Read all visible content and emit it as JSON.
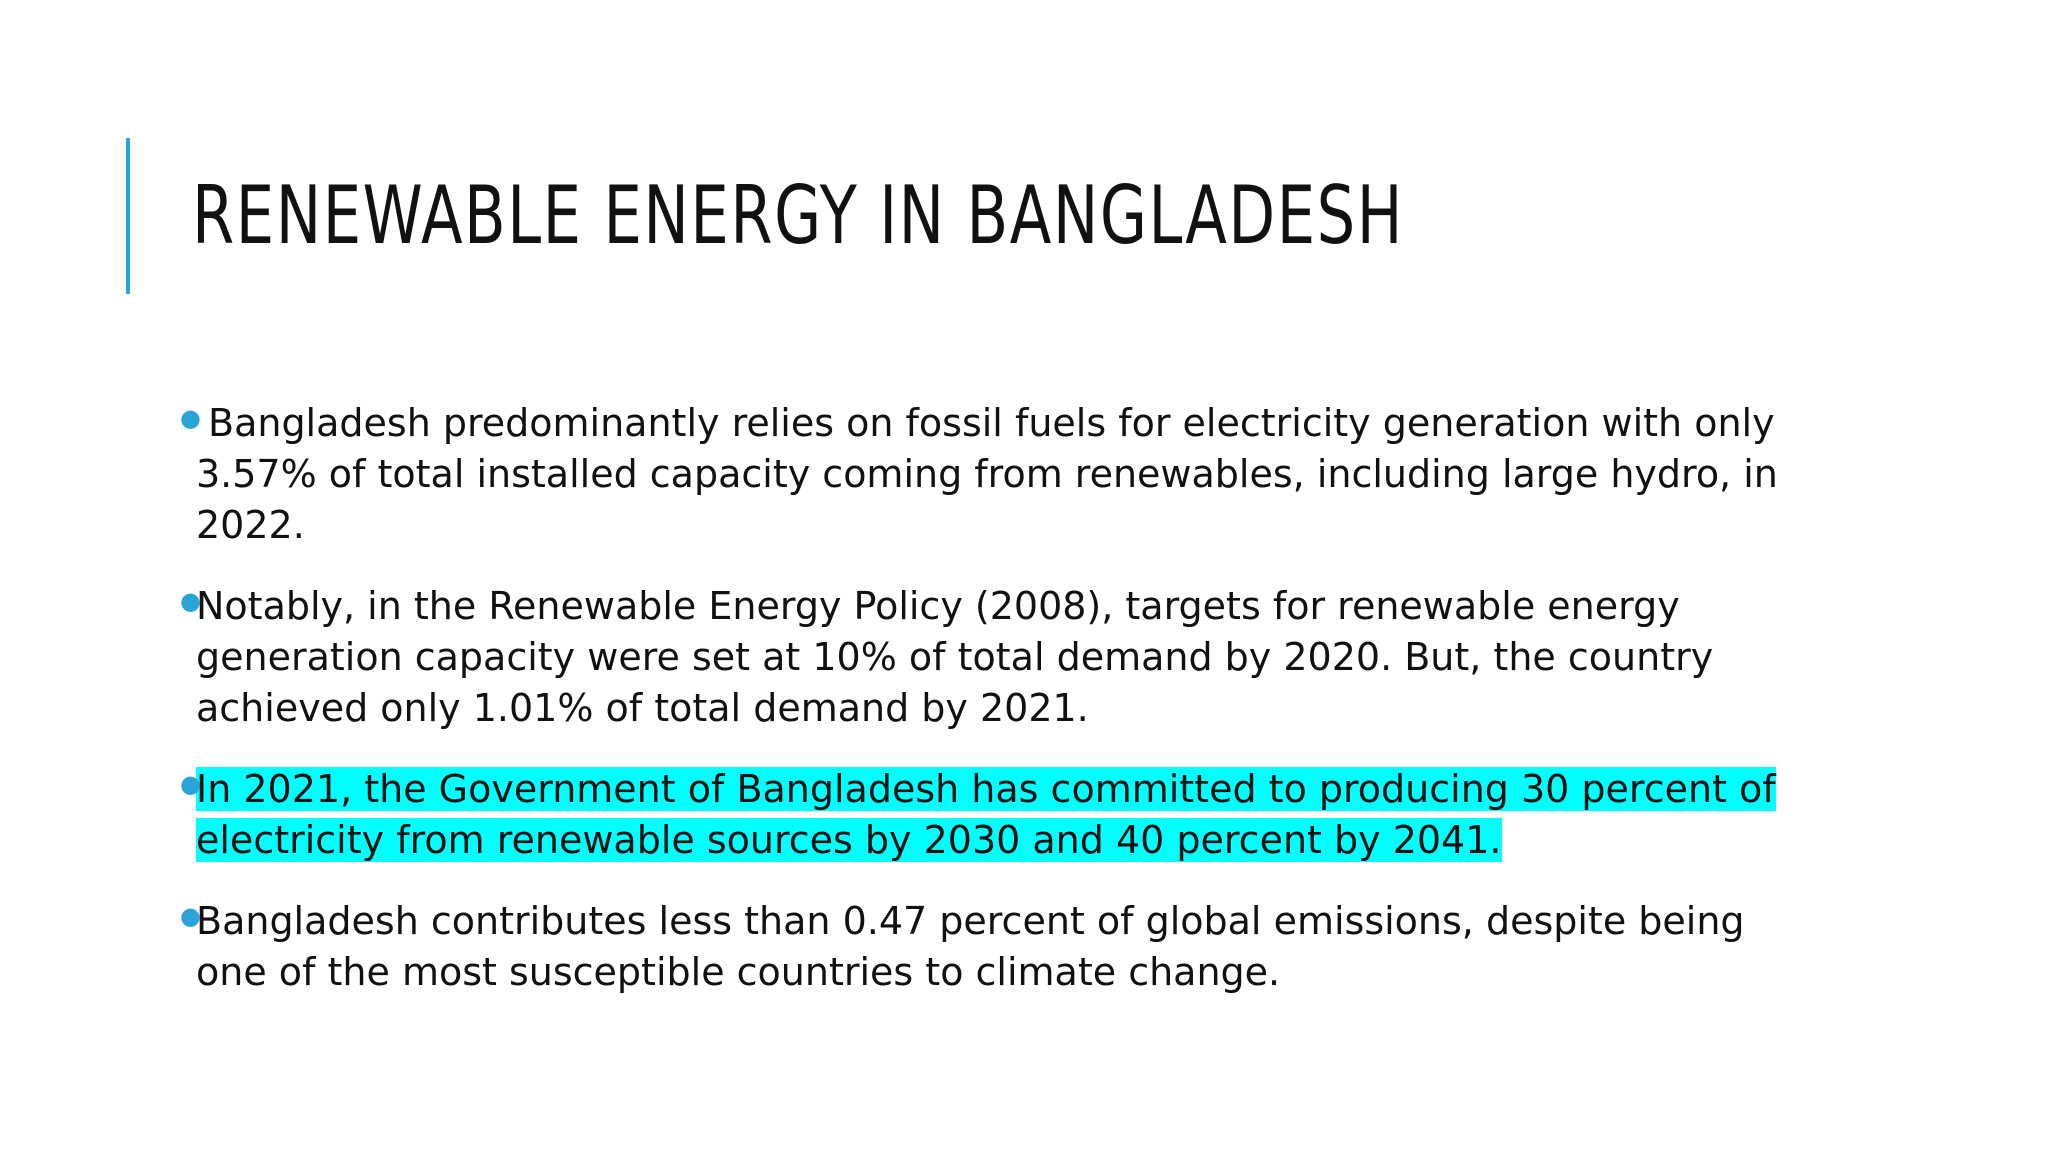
{
  "slide": {
    "title": "RENEWABLE ENERGY IN BANGLADESH",
    "accent_color": "#2aa3d6",
    "highlight_color": "#00ffff",
    "bullets": [
      {
        "text": "Bangladesh predominantly relies on fossil fuels for electricity generation with only 3.57% of total installed capacity coming from renewables, including large hydro, in 2022.",
        "highlighted": false
      },
      {
        "text": "Notably, in the Renewable Energy Policy (2008), targets for renewable energy generation capacity were set at 10% of total demand by 2020. But, the country achieved only 1.01% of total demand by 2021.",
        "highlighted": false
      },
      {
        "text": "In 2021, the Government of Bangladesh has committed to producing 30 percent of electricity from renewable sources by 2030 and 40 percent by 2041.",
        "highlighted": true
      },
      {
        "text": "Bangladesh contributes less than 0.47 percent of global emissions, despite being one of the most susceptible countries to climate change.",
        "highlighted": false
      }
    ]
  }
}
